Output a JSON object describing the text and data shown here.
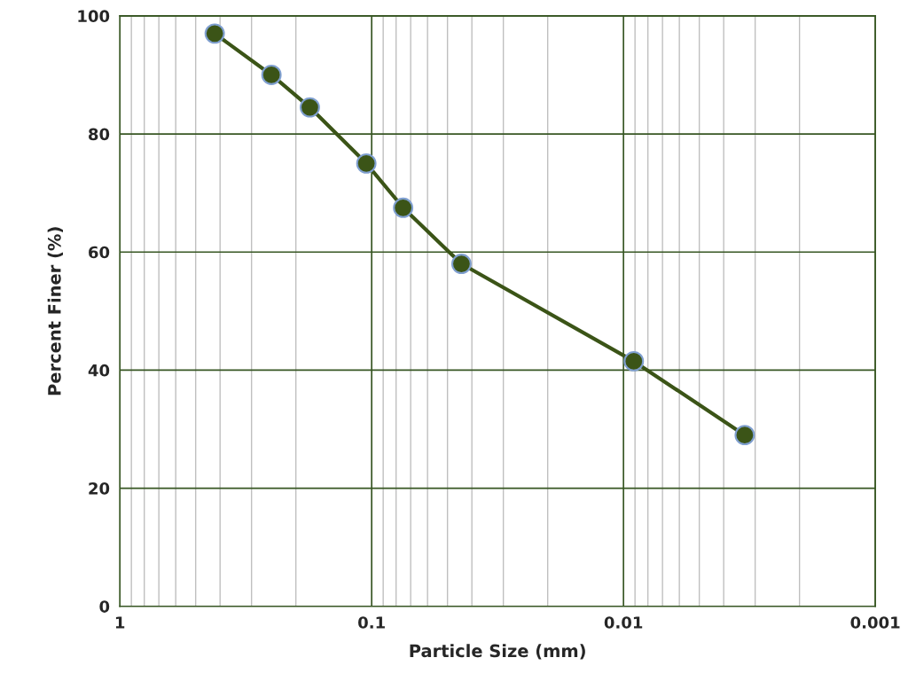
{
  "chart_data": {
    "type": "line",
    "xlabel": "Particle Size (mm)",
    "ylabel": "Percent Finer (%)",
    "x": [
      0.42,
      0.25,
      0.176,
      0.105,
      0.075,
      0.044,
      0.0091,
      0.0033
    ],
    "series": [
      {
        "color": "#3b5417",
        "values": [
          97,
          90,
          84.5,
          75,
          67.5,
          58,
          41.5,
          29
        ]
      }
    ],
    "log": "x",
    "xlim": [
      1,
      0.001
    ],
    "xticks": [
      1,
      0.1,
      0.01,
      0.001
    ],
    "ylim": [
      0,
      100
    ],
    "yticks": [
      0,
      20,
      40,
      60,
      80,
      100
    ],
    "grid": true,
    "marker": "circle",
    "line_style": "solid"
  }
}
